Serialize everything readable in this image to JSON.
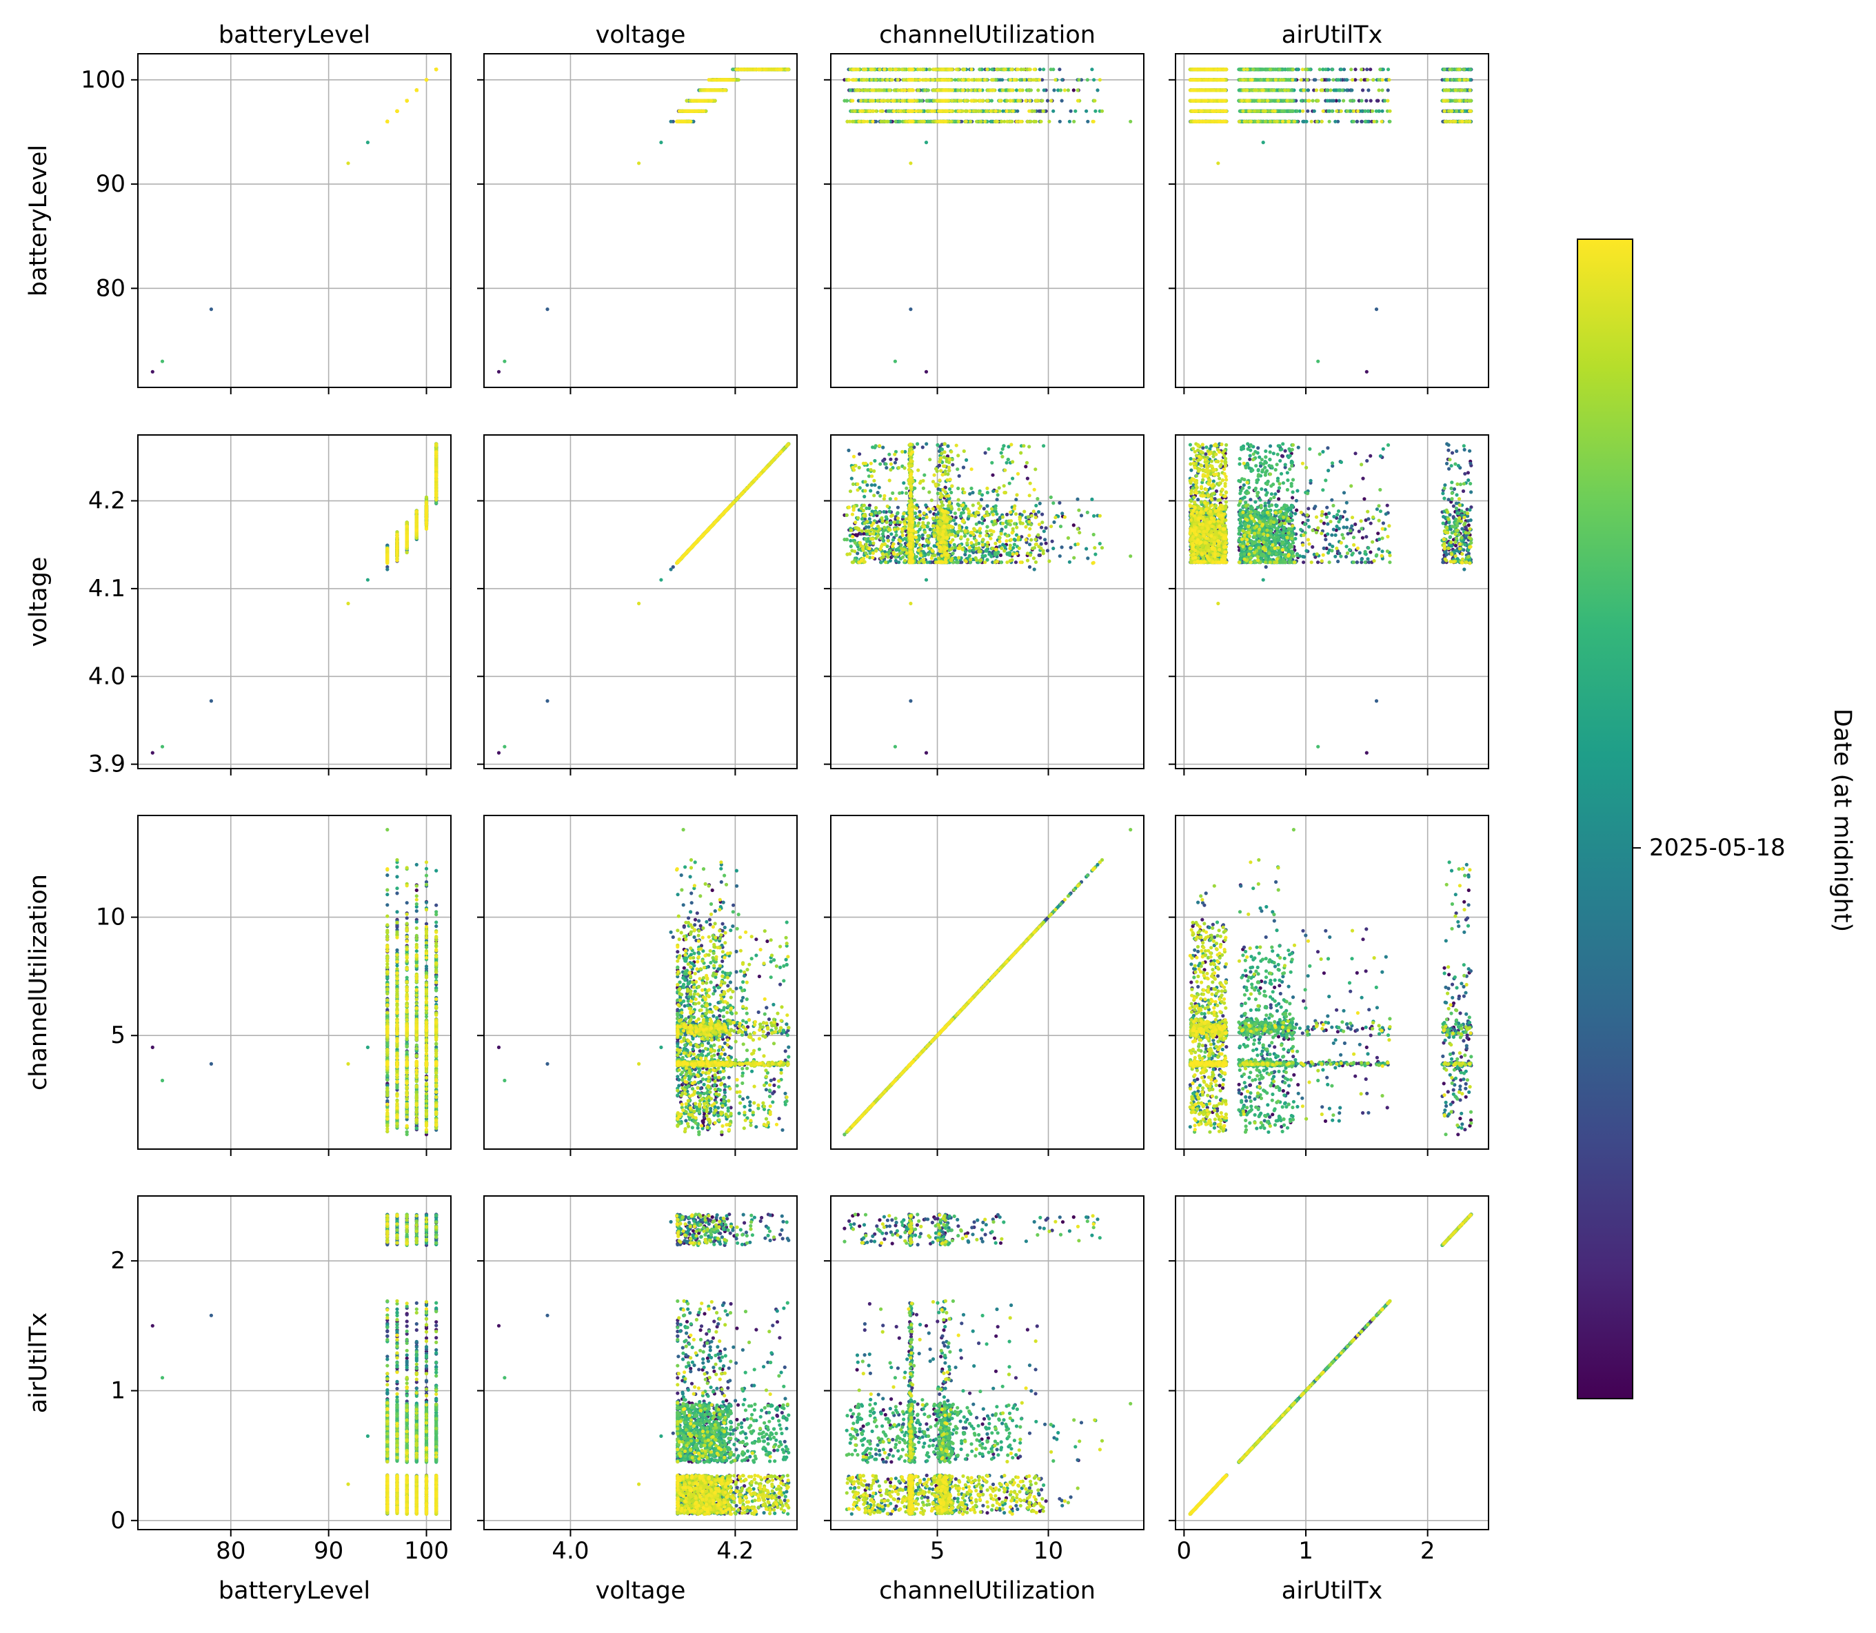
{
  "chart_data": {
    "type": "scatter",
    "title": "",
    "variables": [
      {
        "name": "batteryLevel",
        "range": [
          70.5,
          102.5
        ],
        "ticks": [
          80,
          90,
          100
        ],
        "tick_labels": [
          "80",
          "90",
          "100"
        ],
        "row_ticks": [
          80,
          90,
          100
        ],
        "row_tick_labels": [
          "80",
          "90",
          "100"
        ]
      },
      {
        "name": "voltage",
        "range": [
          3.895,
          4.275
        ],
        "ticks": [
          4.0,
          4.2
        ],
        "tick_labels": [
          "4.0",
          "4.2"
        ],
        "row_ticks": [
          3.9,
          4.0,
          4.1,
          4.2
        ],
        "row_tick_labels": [
          "3.9",
          "4.0",
          "4.1",
          "4.2"
        ]
      },
      {
        "name": "channelUtilization",
        "range": [
          0.2,
          14.3
        ],
        "ticks": [
          5,
          10
        ],
        "tick_labels": [
          "5",
          "10"
        ],
        "row_ticks": [
          5,
          10
        ],
        "row_tick_labels": [
          "5",
          "10"
        ]
      },
      {
        "name": "airUtilTx",
        "range": [
          -0.07,
          2.5
        ],
        "ticks": [
          0,
          1,
          2
        ],
        "tick_labels": [
          "0",
          "1",
          "2"
        ],
        "row_ticks": [
          0,
          1,
          2
        ],
        "row_tick_labels": [
          "0",
          "1",
          "2"
        ]
      }
    ],
    "grid": true,
    "colormap": [
      "#440154",
      "#482878",
      "#3e4989",
      "#31688e",
      "#26828e",
      "#1f9e89",
      "#35b779",
      "#6ece58",
      "#b5de2b",
      "#fde725"
    ],
    "colorbar": {
      "label": "Date (at midnight)",
      "tick_label": "2025-05-18",
      "tick_fraction": 0.475,
      "placement": "right"
    },
    "outliers": [
      {
        "batteryLevel": 72,
        "voltage": 3.913,
        "channelUtilization": 4.5,
        "airUtilTx": 1.5,
        "c": 0.05
      },
      {
        "batteryLevel": 73,
        "voltage": 3.92,
        "channelUtilization": 3.1,
        "airUtilTx": 1.1,
        "c": 0.7
      },
      {
        "batteryLevel": 78,
        "voltage": 3.972,
        "channelUtilization": 3.8,
        "airUtilTx": 1.58,
        "c": 0.3
      },
      {
        "batteryLevel": 92,
        "voltage": 4.083,
        "channelUtilization": 3.8,
        "airUtilTx": 0.28,
        "c": 0.95
      },
      {
        "batteryLevel": 94,
        "voltage": 4.11,
        "channelUtilization": 4.5,
        "airUtilTx": 0.65,
        "c": 0.6
      },
      {
        "batteryLevel": 96,
        "voltage": 4.137,
        "channelUtilization": 13.7,
        "airUtilTx": 0.9,
        "c": 0.8
      }
    ],
    "clusters": [
      {
        "n": 1400,
        "airUtilTx": [
          0.05,
          0.35
        ],
        "channelUtilization": [
          0.9,
          9.8
        ],
        "cbias": "yellow"
      },
      {
        "n": 1100,
        "airUtilTx": [
          0.45,
          0.9
        ],
        "channelUtilization": [
          0.9,
          8.8
        ],
        "cbias": "green"
      },
      {
        "n": 230,
        "airUtilTx": [
          0.9,
          1.7
        ],
        "channelUtilization": [
          1.2,
          9.5
        ],
        "cbias": "any"
      },
      {
        "n": 280,
        "airUtilTx": [
          2.12,
          2.36
        ],
        "channelUtilization": [
          0.8,
          8.0
        ],
        "cbias": "any"
      }
    ]
  }
}
